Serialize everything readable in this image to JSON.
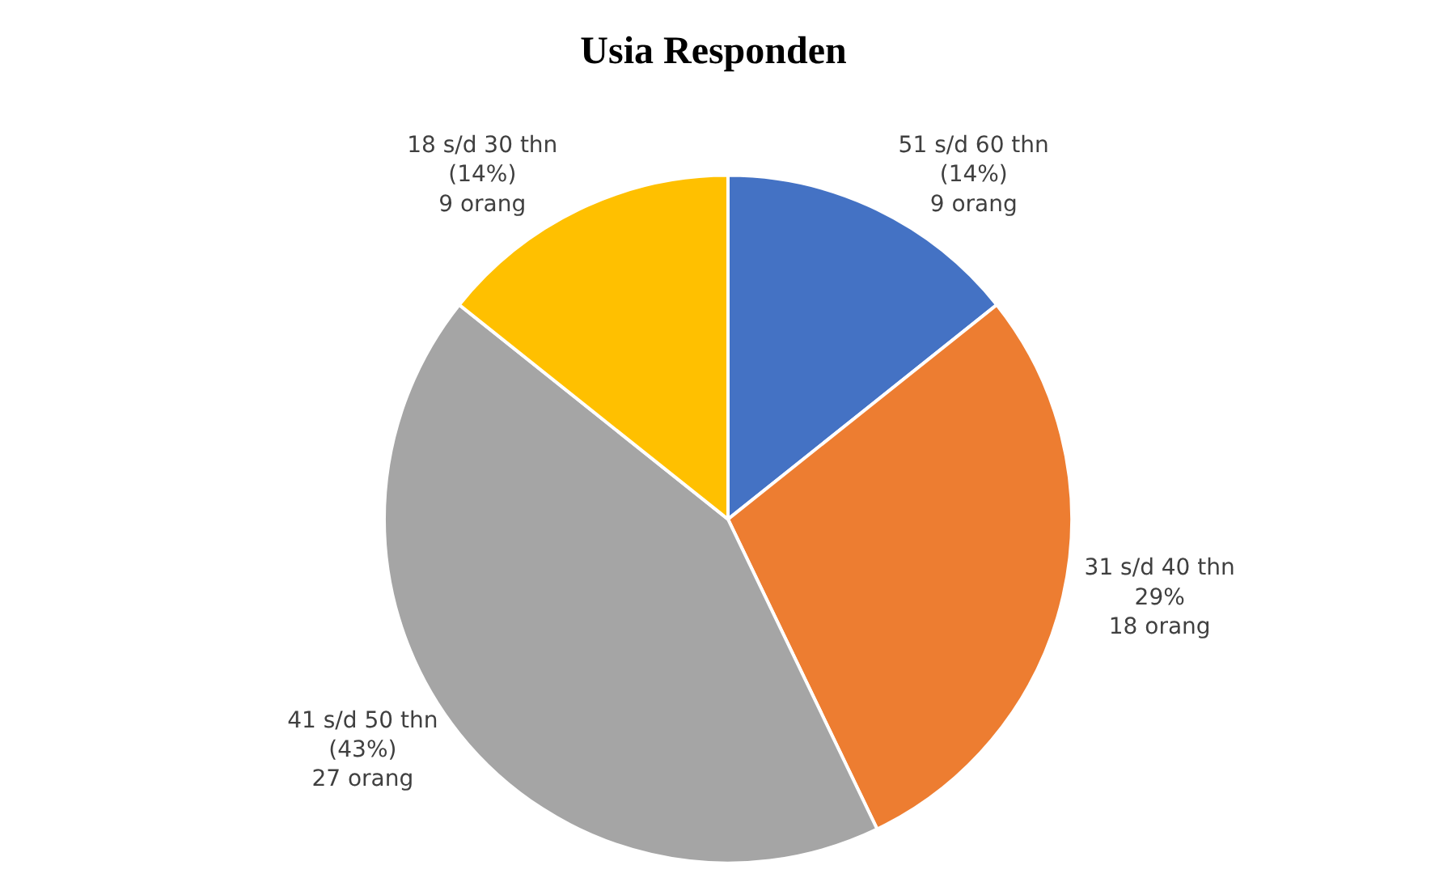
{
  "chart_data": {
    "type": "pie",
    "title": "Usia Responden",
    "categories": [
      "51 s/d 60 thn",
      "31 s/d 40 thn",
      "41 s/d 50 thn",
      "18 s/d 30 thn"
    ],
    "values": [
      9,
      18,
      27,
      9
    ],
    "value_labels": [
      "(14%)\n9 orang",
      "29%\n18 orang",
      "(43%)\n27 orang",
      "(14%)\n9 orang"
    ],
    "colors": [
      "#4472c4",
      "#ed7d31",
      "#a5a5a5",
      "#ffc000"
    ],
    "legend": false
  }
}
